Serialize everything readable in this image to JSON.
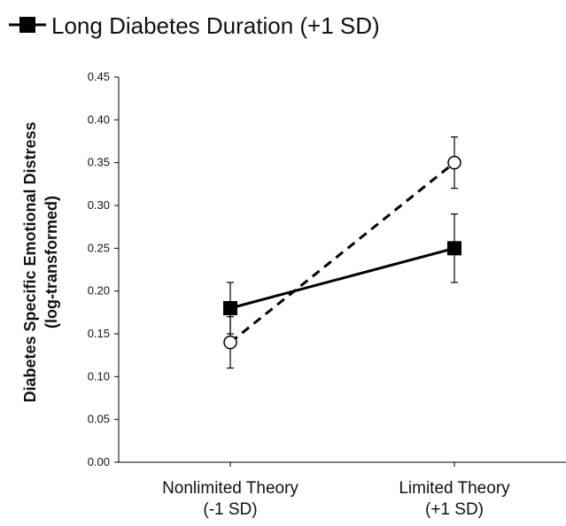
{
  "chart_data": {
    "type": "line",
    "categories": [
      "Nonlimited Theory\n(-1 SD)",
      "Limited Theory\n(+1 SD)"
    ],
    "series": [
      {
        "name": "Long Diabetes Duration (+1 SD)",
        "marker": "filled-square",
        "line": "solid",
        "color": "#000000",
        "values": [
          0.18,
          0.25
        ],
        "error": [
          0.03,
          0.04
        ]
      },
      {
        "name": "",
        "marker": "open-circle",
        "line": "dashed",
        "color": "#000000",
        "values": [
          0.14,
          0.35
        ],
        "error": [
          0.03,
          0.03
        ]
      }
    ],
    "ylabel": "Diabetes Specific Emotional Distress\n(log-transformed)",
    "xlabel": "",
    "ylim": [
      0.0,
      0.45
    ],
    "yticks": [
      "0.00",
      "0.05",
      "0.10",
      "0.15",
      "0.20",
      "0.25",
      "0.30",
      "0.35",
      "0.40",
      "0.45"
    ],
    "grid": false,
    "legend_position": "top-left"
  }
}
